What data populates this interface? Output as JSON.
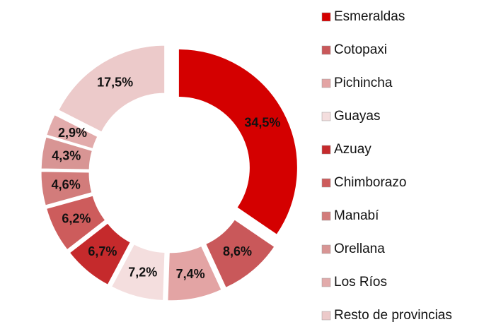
{
  "chart_data": {
    "type": "donut",
    "categories": [
      "Esmeraldas",
      "Cotopaxi",
      "Pichincha",
      "Guayas",
      "Azuay",
      "Chimborazo",
      "Manabí",
      "Orellana",
      "Los Ríos",
      "Resto de provincias"
    ],
    "values": [
      34.5,
      8.6,
      7.4,
      7.2,
      6.7,
      6.2,
      4.6,
      4.3,
      2.9,
      17.5
    ],
    "value_labels": [
      "34,5%",
      "8,6%",
      "7,4%",
      "7,2%",
      "6,7%",
      "6,2%",
      "4,6%",
      "4,3%",
      "2,9%",
      "17,5%"
    ],
    "colors": [
      "#d40000",
      "#c9585a",
      "#e3a4a4",
      "#f4dede",
      "#c52a2c",
      "#cd5c5c",
      "#d27c7b",
      "#d89594",
      "#e2abab",
      "#eccaca"
    ],
    "legend": "right"
  }
}
